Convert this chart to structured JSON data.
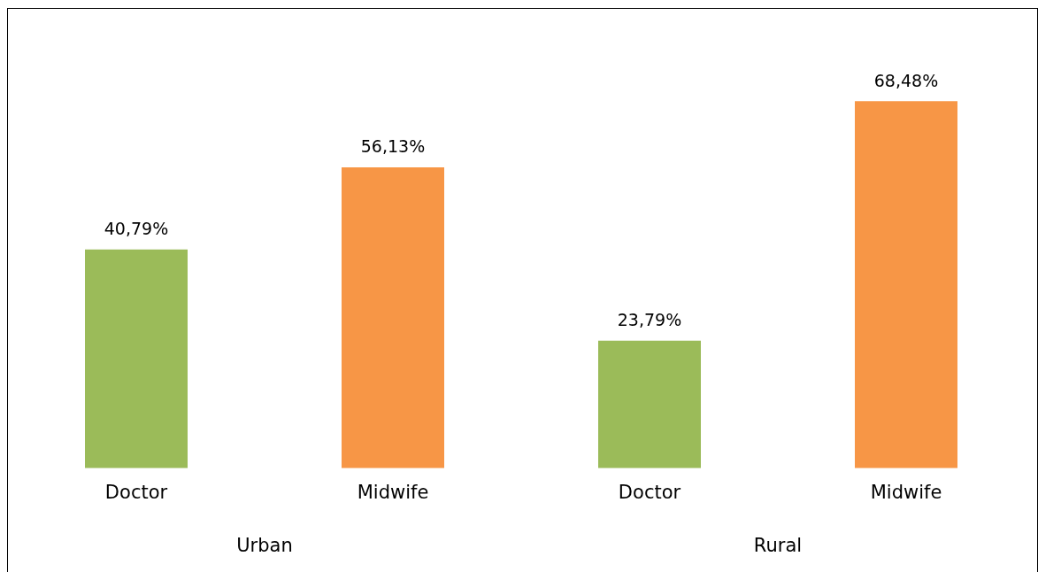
{
  "chart_data": {
    "type": "bar",
    "categories": [
      "Doctor",
      "Midwife",
      "Doctor",
      "Midwife"
    ],
    "values": [
      40.79,
      56.13,
      23.79,
      68.48
    ],
    "colors": [
      "#9bbb59",
      "#f79646",
      "#9bbb59",
      "#f79646"
    ],
    "value_labels": [
      "40,79%",
      "56,13%",
      "23,79%",
      "68,48%"
    ],
    "annotations": [
      "Urban",
      "Rural"
    ],
    "tick_labels": "x",
    "grid": false,
    "legend": false
  }
}
